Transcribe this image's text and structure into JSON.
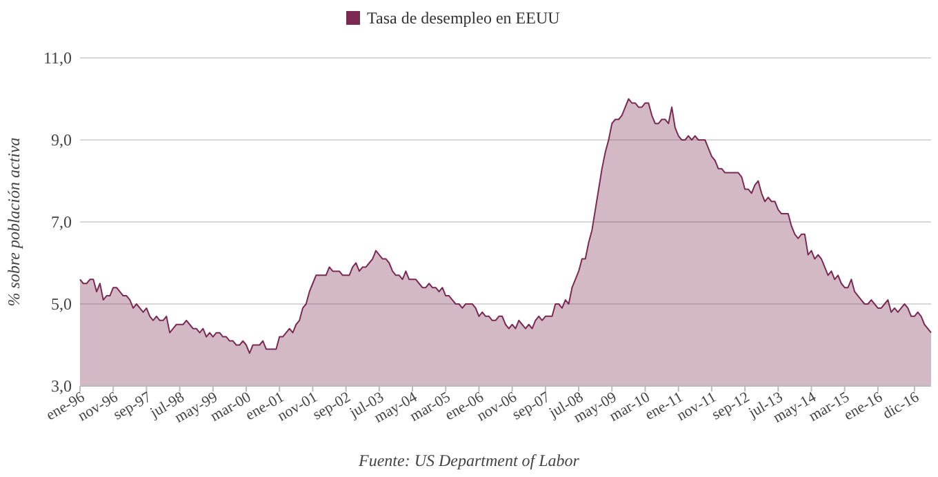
{
  "chart_data": {
    "type": "area",
    "ylabel": "% sobre población activa",
    "annotations": [
      "Fuente: US Department of Labor"
    ],
    "legend": "top",
    "grid": "y",
    "ylim": [
      3,
      11
    ],
    "yticks": [
      {
        "value": 3,
        "label": "3,0"
      },
      {
        "value": 5,
        "label": "5,0"
      },
      {
        "value": 7,
        "label": "7,0"
      },
      {
        "value": 9,
        "label": "9,0"
      },
      {
        "value": 11,
        "label": "11,0"
      }
    ],
    "categories": [
      "ene-96",
      null,
      null,
      null,
      null,
      null,
      null,
      null,
      null,
      null,
      "nov-96",
      null,
      null,
      null,
      null,
      null,
      null,
      null,
      null,
      null,
      "sep-97",
      null,
      null,
      null,
      null,
      null,
      null,
      null,
      null,
      null,
      "jul-98",
      null,
      null,
      null,
      null,
      null,
      null,
      null,
      null,
      null,
      "may-99",
      null,
      null,
      null,
      null,
      null,
      null,
      null,
      null,
      null,
      "mar-00",
      null,
      null,
      null,
      null,
      null,
      null,
      null,
      null,
      null,
      "ene-01",
      null,
      null,
      null,
      null,
      null,
      null,
      null,
      null,
      null,
      "nov-01",
      null,
      null,
      null,
      null,
      null,
      null,
      null,
      null,
      null,
      "sep-02",
      null,
      null,
      null,
      null,
      null,
      null,
      null,
      null,
      null,
      "jul-03",
      null,
      null,
      null,
      null,
      null,
      null,
      null,
      null,
      null,
      "may-04",
      null,
      null,
      null,
      null,
      null,
      null,
      null,
      null,
      null,
      "mar-05",
      null,
      null,
      null,
      null,
      null,
      null,
      null,
      null,
      null,
      "ene-06",
      null,
      null,
      null,
      null,
      null,
      null,
      null,
      null,
      null,
      "nov-06",
      null,
      null,
      null,
      null,
      null,
      null,
      null,
      null,
      null,
      "sep-07",
      null,
      null,
      null,
      null,
      null,
      null,
      null,
      null,
      null,
      "jul-08",
      null,
      null,
      null,
      null,
      null,
      null,
      null,
      null,
      null,
      "may-09",
      null,
      null,
      null,
      null,
      null,
      null,
      null,
      null,
      null,
      "mar-10",
      null,
      null,
      null,
      null,
      null,
      null,
      null,
      null,
      null,
      "ene-11",
      null,
      null,
      null,
      null,
      null,
      null,
      null,
      null,
      null,
      "nov-11",
      null,
      null,
      null,
      null,
      null,
      null,
      null,
      null,
      null,
      "sep-12",
      null,
      null,
      null,
      null,
      null,
      null,
      null,
      null,
      null,
      "jul-13",
      null,
      null,
      null,
      null,
      null,
      null,
      null,
      null,
      null,
      "may-14",
      null,
      null,
      null,
      null,
      null,
      null,
      null,
      null,
      null,
      "mar-15",
      null,
      null,
      null,
      null,
      null,
      null,
      null,
      null,
      null,
      "ene-16",
      null,
      null,
      null,
      null,
      null,
      null,
      null,
      null,
      null,
      null,
      "dic-16",
      null,
      null,
      null,
      null,
      null
    ],
    "series": [
      {
        "name": "Tasa de desempleo en EEUU",
        "color": "#7a2a52",
        "values": [
          5.6,
          5.5,
          5.5,
          5.6,
          5.6,
          5.3,
          5.5,
          5.1,
          5.2,
          5.2,
          5.4,
          5.4,
          5.3,
          5.2,
          5.2,
          5.1,
          4.9,
          5.0,
          4.9,
          4.8,
          4.9,
          4.7,
          4.6,
          4.7,
          4.6,
          4.6,
          4.7,
          4.3,
          4.4,
          4.5,
          4.5,
          4.5,
          4.6,
          4.5,
          4.4,
          4.4,
          4.3,
          4.4,
          4.2,
          4.3,
          4.2,
          4.3,
          4.3,
          4.2,
          4.2,
          4.1,
          4.1,
          4.0,
          4.0,
          4.1,
          4.0,
          3.8,
          4.0,
          4.0,
          4.0,
          4.1,
          3.9,
          3.9,
          3.9,
          3.9,
          4.2,
          4.2,
          4.3,
          4.4,
          4.3,
          4.5,
          4.6,
          4.9,
          5.0,
          5.3,
          5.5,
          5.7,
          5.7,
          5.7,
          5.7,
          5.9,
          5.8,
          5.8,
          5.8,
          5.7,
          5.7,
          5.7,
          5.9,
          6.0,
          5.8,
          5.9,
          5.9,
          6.0,
          6.1,
          6.3,
          6.2,
          6.1,
          6.1,
          6.0,
          5.8,
          5.7,
          5.7,
          5.6,
          5.8,
          5.6,
          5.6,
          5.6,
          5.5,
          5.4,
          5.4,
          5.5,
          5.4,
          5.4,
          5.3,
          5.4,
          5.2,
          5.2,
          5.1,
          5.0,
          5.0,
          4.9,
          5.0,
          5.0,
          5.0,
          4.9,
          4.7,
          4.8,
          4.7,
          4.7,
          4.6,
          4.6,
          4.7,
          4.7,
          4.5,
          4.4,
          4.5,
          4.4,
          4.6,
          4.5,
          4.4,
          4.5,
          4.4,
          4.6,
          4.7,
          4.6,
          4.7,
          4.7,
          4.7,
          5.0,
          5.0,
          4.9,
          5.1,
          5.0,
          5.4,
          5.6,
          5.8,
          6.1,
          6.1,
          6.5,
          6.8,
          7.3,
          7.8,
          8.3,
          8.7,
          9.0,
          9.4,
          9.5,
          9.5,
          9.6,
          9.8,
          10.0,
          9.9,
          9.9,
          9.8,
          9.8,
          9.9,
          9.9,
          9.6,
          9.4,
          9.4,
          9.5,
          9.5,
          9.4,
          9.8,
          9.3,
          9.1,
          9.0,
          9.0,
          9.1,
          9.0,
          9.1,
          9.0,
          9.0,
          9.0,
          8.8,
          8.6,
          8.5,
          8.3,
          8.3,
          8.2,
          8.2,
          8.2,
          8.2,
          8.2,
          8.1,
          7.8,
          7.8,
          7.7,
          7.9,
          8.0,
          7.7,
          7.5,
          7.6,
          7.5,
          7.5,
          7.3,
          7.2,
          7.2,
          7.2,
          6.9,
          6.7,
          6.6,
          6.7,
          6.7,
          6.2,
          6.3,
          6.1,
          6.2,
          6.1,
          5.9,
          5.7,
          5.8,
          5.6,
          5.7,
          5.5,
          5.4,
          5.4,
          5.6,
          5.3,
          5.2,
          5.1,
          5.0,
          5.0,
          5.1,
          5.0,
          4.9,
          4.9,
          5.0,
          5.1,
          4.8,
          4.9,
          4.8,
          4.9,
          5.0,
          4.9,
          4.7,
          4.7,
          4.8,
          4.7,
          4.5,
          4.4,
          4.3
        ]
      }
    ]
  }
}
